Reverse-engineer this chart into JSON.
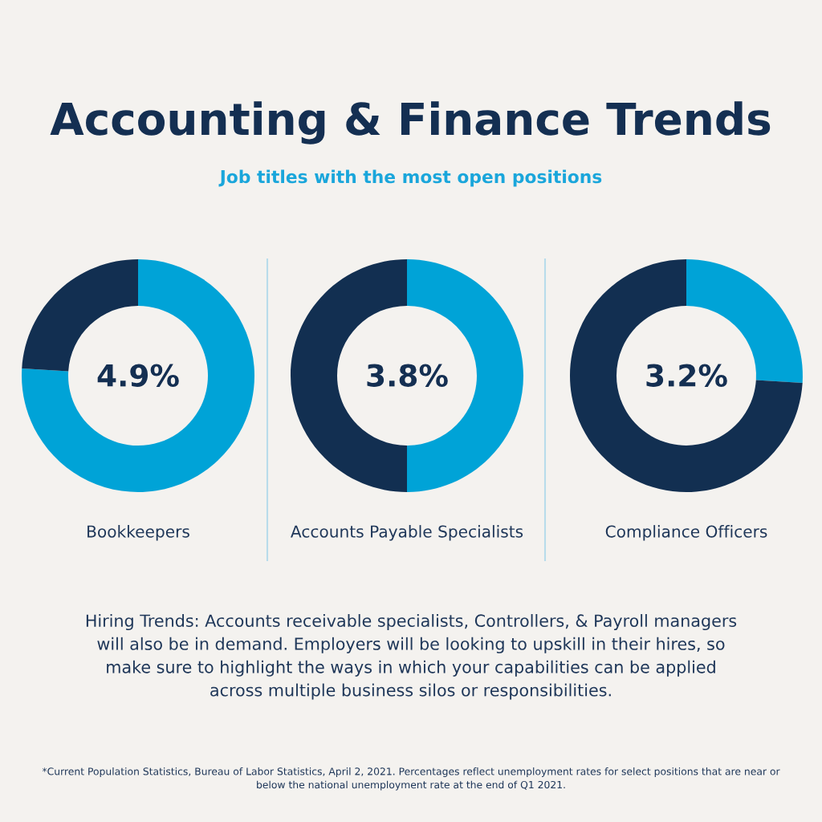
{
  "chart_data": [
    {
      "type": "other",
      "title": "Accounting & Finance Trends",
      "subtitle": "Job titles with the most open positions"
    },
    {
      "type": "donut",
      "categories": [
        null,
        null
      ],
      "values": [
        76,
        24
      ],
      "colors": [
        "#00a3d7",
        "#122f51"
      ],
      "annotations": [
        "4.9%"
      ],
      "xlabel": "Bookkeepers"
    },
    {
      "type": "donut",
      "categories": [
        null,
        null
      ],
      "values": [
        50,
        50
      ],
      "colors": [
        "#00a3d7",
        "#122f51"
      ],
      "annotations": [
        "3.8%"
      ],
      "xlabel": "Accounts Payable Specialists"
    },
    {
      "type": "donut",
      "categories": [
        null,
        null
      ],
      "values": [
        26,
        74
      ],
      "colors": [
        "#00a3d7",
        "#122f51"
      ],
      "annotations": [
        "3.2%"
      ],
      "xlabel": "Compliance Officers"
    },
    {
      "type": "other",
      "annotations": [
        "Hiring Trends: Accounts receivable specialists, Controllers, & Payroll managers will also be in demand. Employers will be looking to upskill in their hires, so make sure to highlight the ways in which your capabilities can be applied across multiple business silos or responsibilities.",
        "*Current Population Statistics, Bureau of Labor Statistics, April 2, 2021. Percentages reflect unemployment rates for select positions that are near or below the national unemployment rate at the end of Q1 2021."
      ]
    }
  ]
}
